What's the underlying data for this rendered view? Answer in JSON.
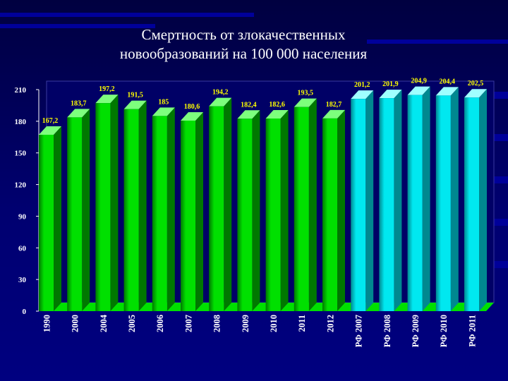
{
  "title_line1": "Смертность от злокачественных",
  "title_line2": "новообразований на 100 000 населения",
  "colors": {
    "background": "#000070",
    "green_bar": "#00e000",
    "cyan_bar": "#00e8f0",
    "floor": "#00e000",
    "text": "#ffffff",
    "value_label": "#ffff00"
  },
  "chart_data": {
    "type": "bar",
    "title": "Смертность от злокачественных новообразований на 100 000 населения",
    "xlabel": "",
    "ylabel": "",
    "ylim": [
      0,
      210
    ],
    "yticks": [
      "0",
      "30",
      "60",
      "90",
      "120",
      "150",
      "180",
      "210"
    ],
    "grid": false,
    "legend": "none",
    "bar_style": "3d",
    "categories": [
      "1990",
      "2000",
      "2004",
      "2005",
      "2006",
      "2007",
      "2008",
      "2009",
      "2010",
      "2011",
      "2012",
      "РФ 2007",
      "РФ 2008",
      "РФ 2009",
      "РФ 2010",
      "РФ 2011"
    ],
    "values": [
      167.2,
      183.7,
      197.2,
      191.5,
      185,
      180.6,
      194.2,
      182.4,
      182.6,
      193.5,
      182.7,
      201.2,
      201.9,
      204.9,
      204.4,
      202.5
    ],
    "value_labels": [
      "167,2",
      "183,7",
      "197,2",
      "191,5",
      "185",
      "180,6",
      "194,2",
      "182,4",
      "182,6",
      "193,5",
      "182,7",
      "201,2",
      "201,9",
      "204,9",
      "204,4",
      "202,5"
    ],
    "bar_colors": [
      "green",
      "green",
      "green",
      "green",
      "green",
      "green",
      "green",
      "green",
      "green",
      "green",
      "green",
      "cyan",
      "cyan",
      "cyan",
      "cyan",
      "cyan"
    ]
  }
}
